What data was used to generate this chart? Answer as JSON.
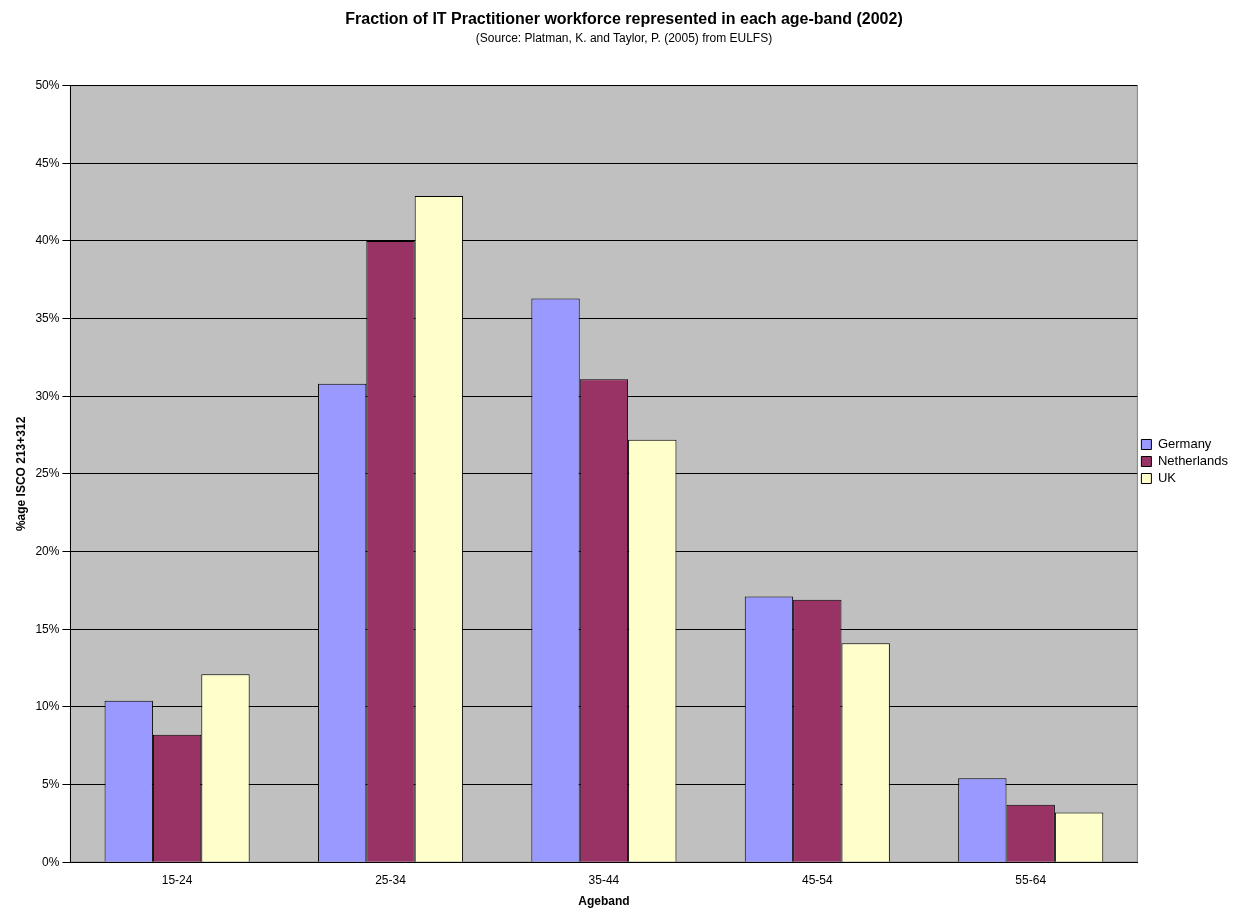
{
  "chart_data": {
    "type": "bar",
    "title": "Fraction of IT Practitioner workforce represented in each age-band (2002)",
    "subtitle": "(Source: Platman, K. and Taylor, P. (2005) from EULFS)",
    "xlabel": "Ageband",
    "ylabel": "%age ISCO 213+312",
    "categories": [
      "15-24",
      "25-34",
      "35-44",
      "45-54",
      "55-64"
    ],
    "series": [
      {
        "name": "Germany",
        "color": "#9999ff",
        "values": [
          10.4,
          30.8,
          36.3,
          17.1,
          5.4
        ]
      },
      {
        "name": "Netherlands",
        "color": "#993366",
        "values": [
          8.2,
          40.0,
          31.1,
          16.9,
          3.7
        ]
      },
      {
        "name": "UK",
        "color": "#ffffcc",
        "values": [
          12.1,
          42.9,
          27.2,
          14.1,
          3.2
        ]
      }
    ],
    "ylim": [
      0,
      50
    ],
    "yticks": [
      {
        "value": 0,
        "label": "0%"
      },
      {
        "value": 5,
        "label": "5%"
      },
      {
        "value": 10,
        "label": "10%"
      },
      {
        "value": 15,
        "label": "15%"
      },
      {
        "value": 20,
        "label": "20%"
      },
      {
        "value": 25,
        "label": "25%"
      },
      {
        "value": 30,
        "label": "30%"
      },
      {
        "value": 35,
        "label": "35%"
      },
      {
        "value": 40,
        "label": "40%"
      },
      {
        "value": 45,
        "label": "45%"
      },
      {
        "value": 50,
        "label": "50%"
      }
    ],
    "grid": "y",
    "legend": "right"
  }
}
